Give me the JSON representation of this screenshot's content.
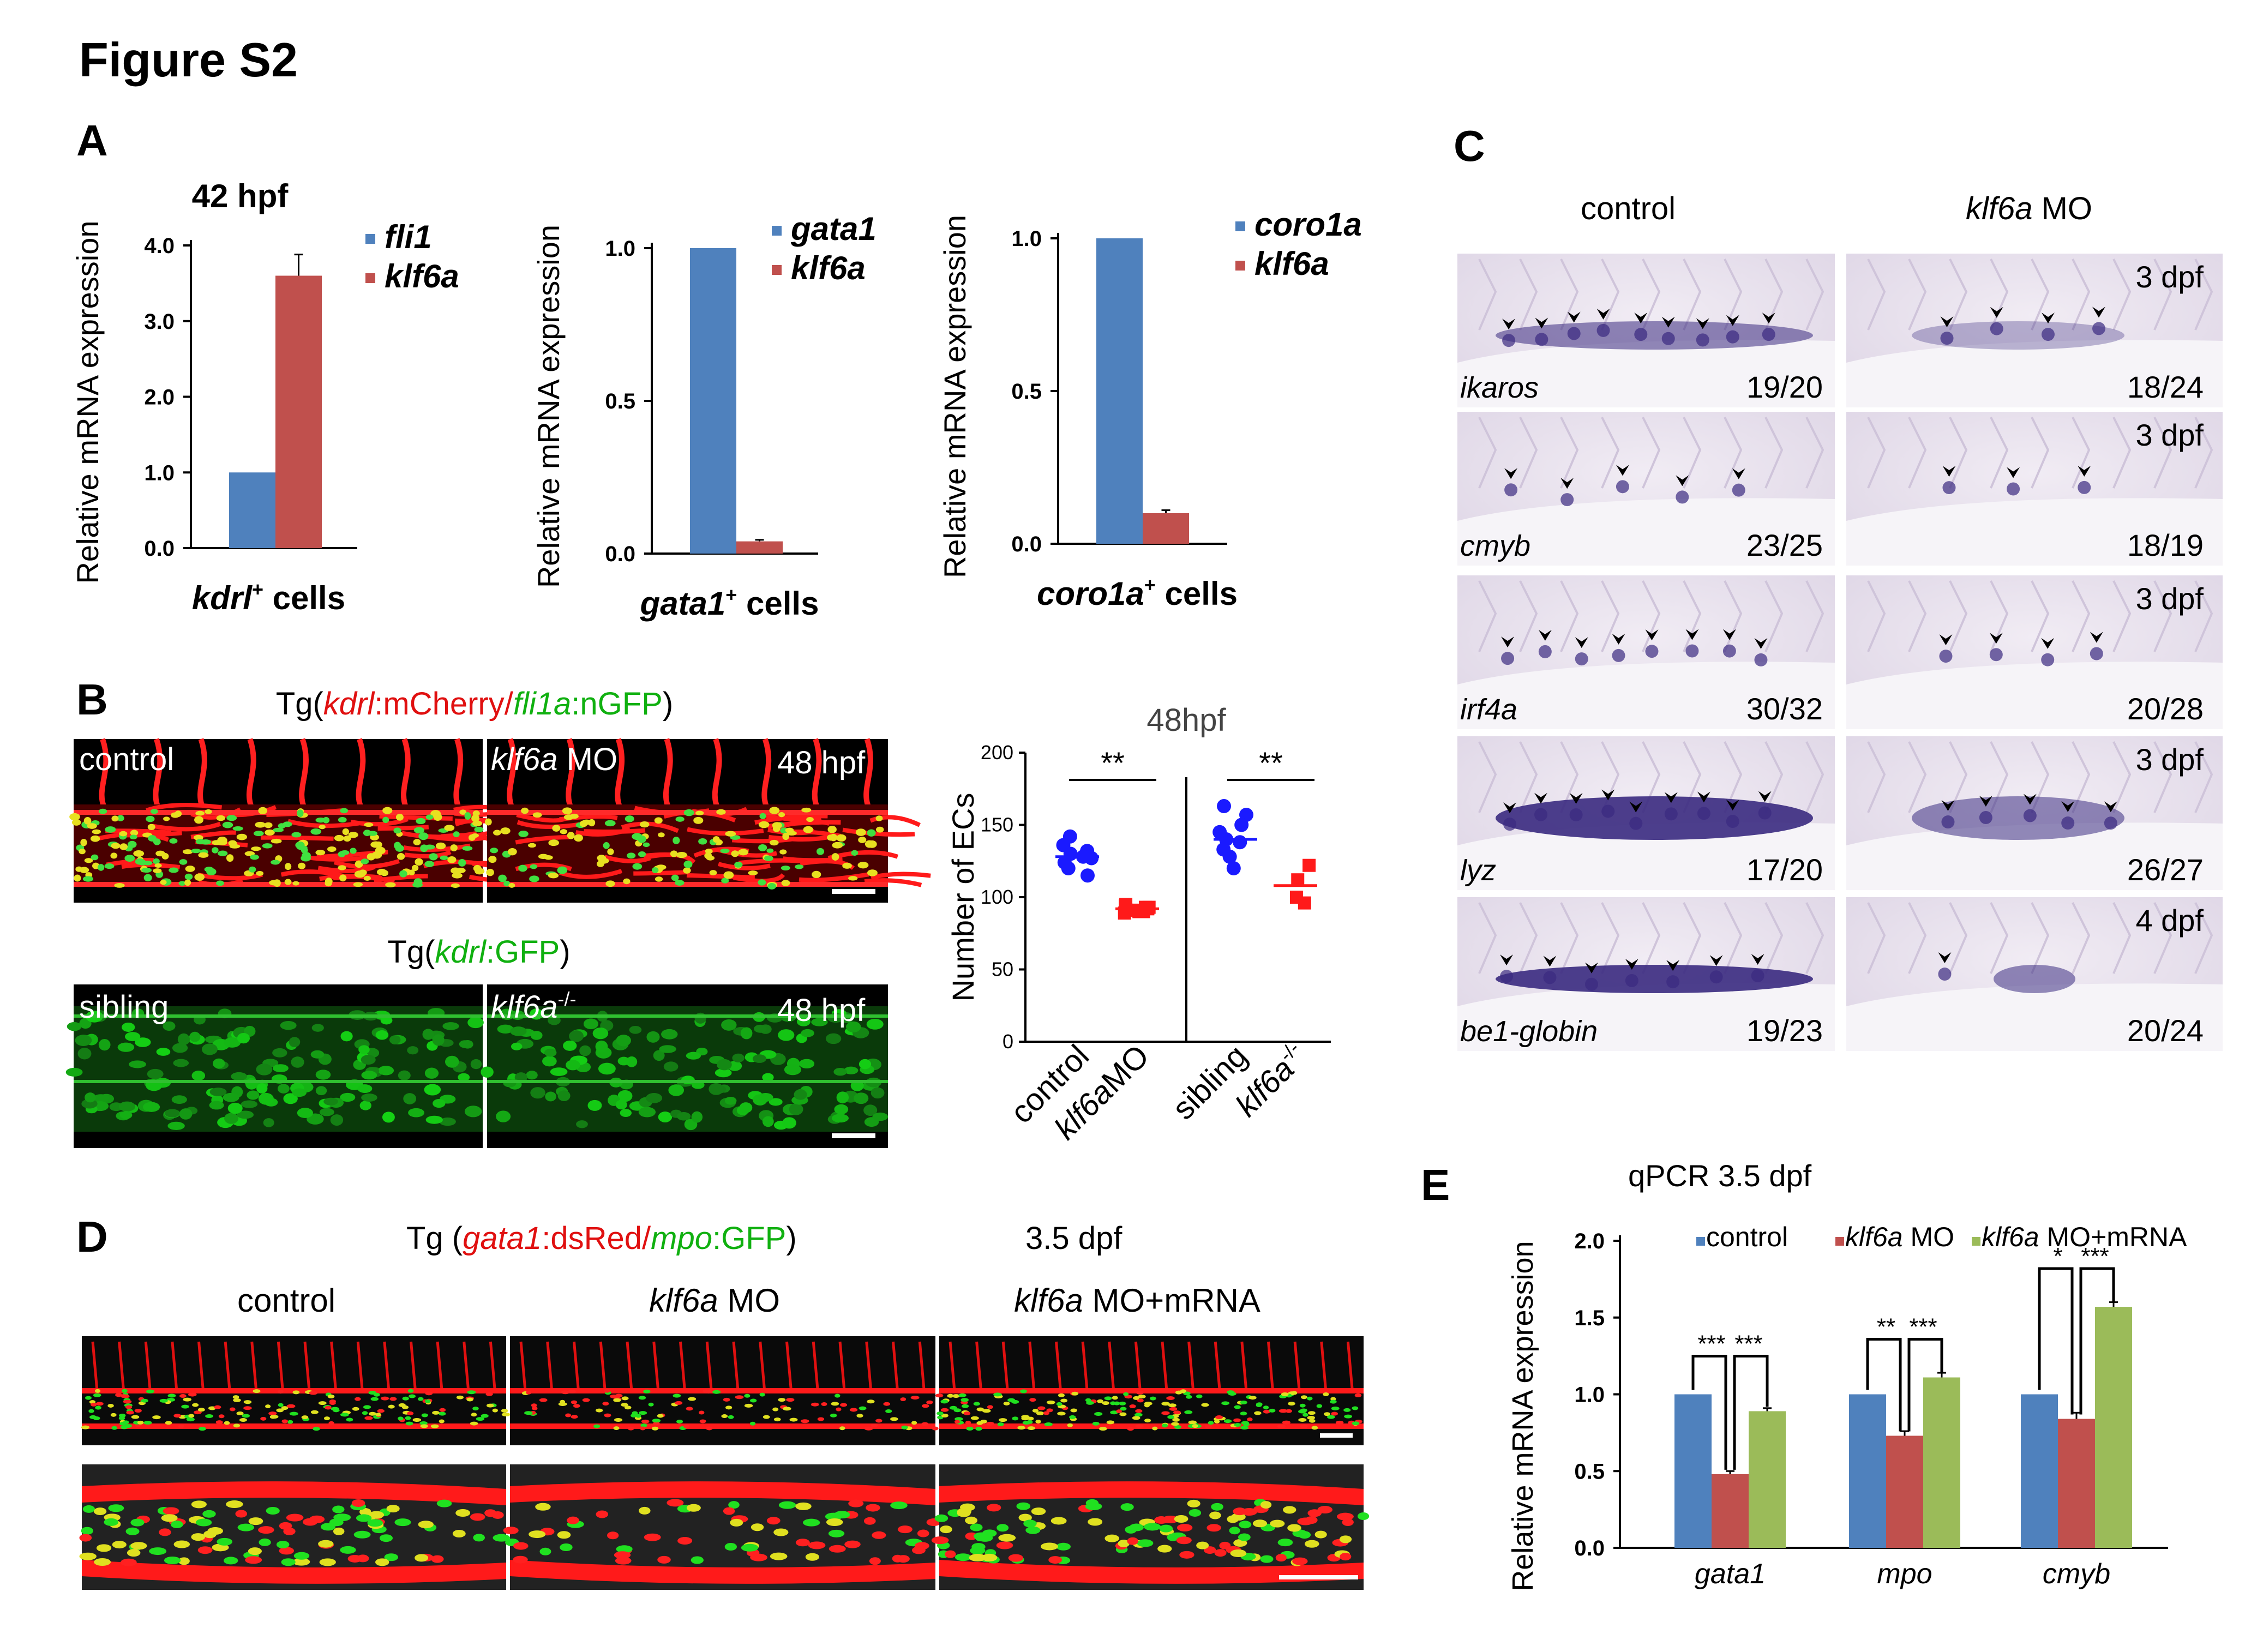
{
  "figure_title": "Figure S2",
  "panel_letters": {
    "A": "A",
    "B": "B",
    "C": "C",
    "D": "D",
    "E": "E"
  },
  "colors": {
    "blue": "#4f81bd",
    "red": "#c0504d",
    "green": "#9bbb59",
    "mcherry": "#ff1010",
    "gfp": "#20e020",
    "ish_bg": "#ece6f0",
    "ish_stain": "#3a2a80"
  },
  "panel_a": {
    "timepoint": "42 hpf",
    "ylabel": "Relative mRNA expression"
  },
  "panel_b": {
    "top_title": {
      "pre": "Tg(",
      "gene1": "kdrl",
      "mid1": ":mCherry/",
      "gene2": "fli1a",
      "mid2": ":nGFP",
      ")": ")"
    },
    "top_left_label": "control",
    "top_right_label": {
      "gene": "klf6a",
      "rest": " MO"
    },
    "top_time": "48 hpf",
    "bottom_title": {
      "pre": "Tg(",
      "gene": "kdrl",
      "mid": ":GFP",
      "post": ")"
    },
    "bottom_left_label": "sibling",
    "bottom_right_label": {
      "gene": "klf6a",
      "sup": "-/-"
    },
    "bottom_time": "48 hpf"
  },
  "panel_c": {
    "col_headers": [
      {
        "text": "control",
        "italic_part": ""
      },
      {
        "text": " MO",
        "italic_part": "klf6a"
      }
    ],
    "rows": [
      {
        "probe": "ikaros",
        "ctrl_ratio": "19/20",
        "mo_ratio": "18/24",
        "stage": "3 dpf"
      },
      {
        "probe": "cmyb",
        "ctrl_ratio": "23/25",
        "mo_ratio": "18/19",
        "stage": "3 dpf"
      },
      {
        "probe": "irf4a",
        "ctrl_ratio": "30/32",
        "mo_ratio": "20/28",
        "stage": "3 dpf"
      },
      {
        "probe": "lyz",
        "ctrl_ratio": "17/20",
        "mo_ratio": "26/27",
        "stage": "3 dpf"
      },
      {
        "probe": "be1-globin",
        "ctrl_ratio": "19/23",
        "mo_ratio": "20/24",
        "stage": "4 dpf"
      }
    ]
  },
  "panel_d": {
    "title": {
      "pre": "Tg (",
      "gene1": "gata1",
      "mid1": ":dsRed/",
      "gene2": "mpo",
      "mid2": ":GFP",
      "post": ")"
    },
    "time": "3.5 dpf",
    "col_labels": [
      {
        "italic": "",
        "text": "control"
      },
      {
        "italic": "klf6a",
        "text": " MO"
      },
      {
        "italic": "klf6a",
        "text": " MO+mRNA"
      }
    ]
  },
  "chart_data": [
    {
      "type": "bar",
      "panel": "A1",
      "title": "42 hpf",
      "ylabel": "Relative mRNA expression",
      "xlabel": {
        "gene": "kdrl",
        "sup": "+",
        "rest": " cells"
      },
      "series": [
        {
          "name": "fli1",
          "values": [
            1.0
          ]
        },
        {
          "name": "klf6a",
          "values": [
            3.6
          ]
        }
      ],
      "errors": [
        0,
        0.28
      ],
      "ylim": [
        0,
        4.0
      ],
      "yticks": [
        "0.0",
        "1.0",
        "2.0",
        "3.0",
        "4.0"
      ]
    },
    {
      "type": "bar",
      "panel": "A2",
      "ylabel": "Relative mRNA expression",
      "xlabel": {
        "gene": "gata1",
        "sup": "+",
        "rest": " cells"
      },
      "series": [
        {
          "name": "gata1",
          "values": [
            1.0
          ]
        },
        {
          "name": "klf6a",
          "values": [
            0.04
          ]
        }
      ],
      "errors": [
        0,
        0.005
      ],
      "ylim": [
        0,
        1.0
      ],
      "yticks": [
        "0.0",
        "0.5",
        "1.0"
      ]
    },
    {
      "type": "bar",
      "panel": "A3",
      "ylabel": "Relative mRNA expression",
      "xlabel": {
        "gene": "coro1a",
        "sup": "+",
        "rest": " cells"
      },
      "series": [
        {
          "name": "coro1a",
          "values": [
            1.0
          ]
        },
        {
          "name": "klf6a",
          "values": [
            0.1
          ]
        }
      ],
      "errors": [
        0,
        0.01
      ],
      "ylim": [
        0,
        1.0
      ],
      "yticks": [
        "0.0",
        "0.5",
        "1.0"
      ]
    },
    {
      "type": "scatter",
      "panel": "B",
      "title": "48hpf",
      "ylabel": "Number of ECs",
      "ylim": [
        0,
        200
      ],
      "yticks": [
        "0",
        "50",
        "100",
        "150",
        "200"
      ],
      "categories": [
        {
          "text": "control",
          "italic": ""
        },
        {
          "text": "MO",
          "italic": "klf6a"
        },
        {
          "text": "sibling",
          "italic": ""
        },
        {
          "text": "",
          "italic": "klf6a",
          "sup": "-/-"
        }
      ],
      "groups": [
        {
          "color": "#1a1aff",
          "marker": "circle",
          "mean": 128,
          "values": [
            142,
            136,
            132,
            130,
            128,
            127,
            124,
            120,
            115
          ]
        },
        {
          "color": "#ff1a1a",
          "marker": "square",
          "mean": 92,
          "values": [
            95,
            94,
            93,
            92,
            92,
            91,
            90,
            90,
            89,
            93,
            91
          ]
        },
        {
          "color": "#1a1aff",
          "marker": "circle",
          "mean": 140,
          "values": [
            163,
            157,
            150,
            145,
            140,
            138,
            133,
            128,
            120
          ]
        },
        {
          "color": "#ff1a1a",
          "marker": "square",
          "mean": 108,
          "values": [
            122,
            112,
            100,
            96
          ]
        }
      ],
      "significance": [
        "**",
        "**"
      ]
    },
    {
      "type": "bar",
      "panel": "E",
      "title": "qPCR    3.5 dpf",
      "ylabel": "Relative mRNA expression",
      "ylim": [
        0,
        2.0
      ],
      "yticks": [
        "0.0",
        "0.5",
        "1.0",
        "1.5",
        "2.0"
      ],
      "categories": [
        "gata1",
        "mpo",
        "cmyb"
      ],
      "series": [
        {
          "name": "control",
          "values": [
            1.0,
            1.0,
            1.0
          ]
        },
        {
          "name": "klf6a MO",
          "values": [
            0.48,
            0.73,
            0.84
          ]
        },
        {
          "name": "klf6a MO+mRNA",
          "values": [
            0.89,
            1.11,
            1.57
          ]
        }
      ],
      "errors": [
        [
          0,
          0,
          0
        ],
        [
          0.02,
          0.03,
          0.04
        ],
        [
          0.02,
          0.03,
          0.03
        ]
      ],
      "significance": [
        [
          "***",
          "***"
        ],
        [
          "**",
          "***"
        ],
        [
          "*",
          "***"
        ]
      ]
    }
  ]
}
